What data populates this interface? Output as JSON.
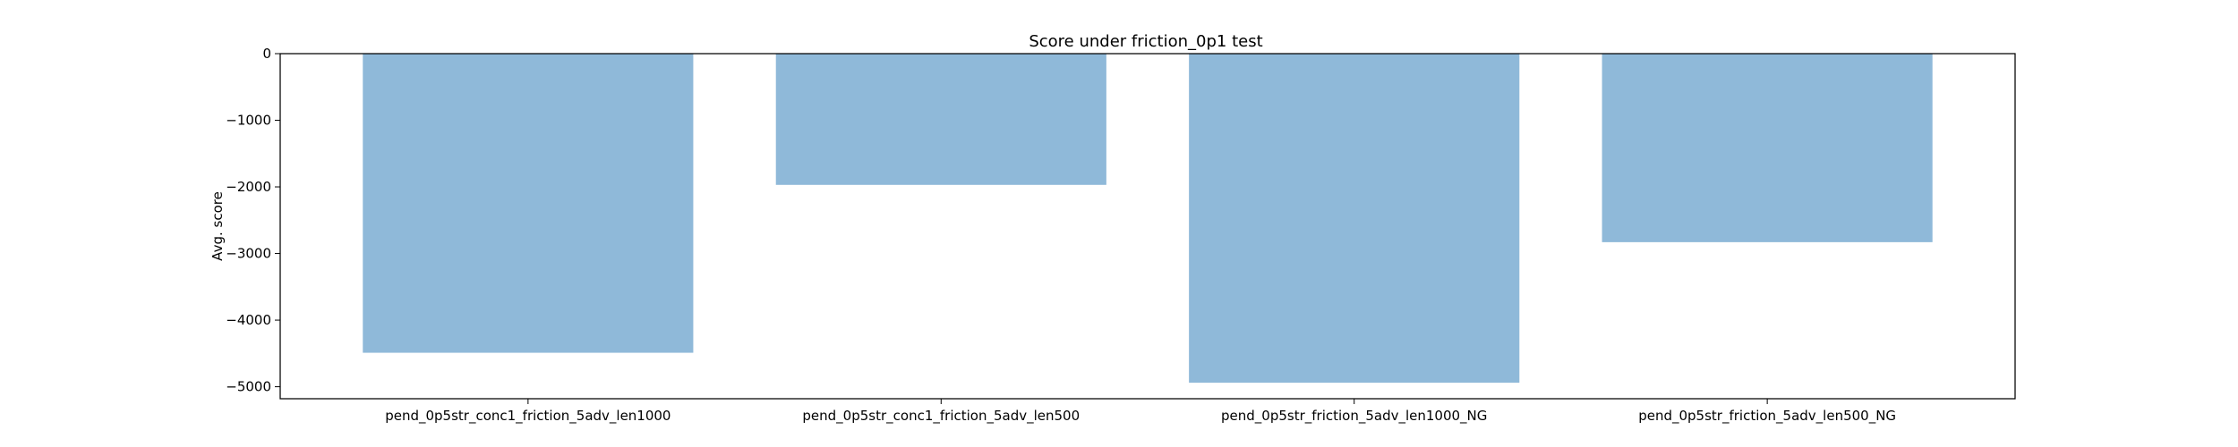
{
  "chart_data": {
    "type": "bar",
    "title": "Score under friction_0p1 test",
    "xlabel": "",
    "ylabel": "Avg. score",
    "categories": [
      "pend_0p5str_conc1_friction_5adv_len1000",
      "pend_0p5str_conc1_friction_5adv_len500",
      "pend_0p5str_friction_5adv_len1000_NG",
      "pend_0p5str_friction_5adv_len500_NG"
    ],
    "values": [
      -4490,
      -1970,
      -4940,
      -2830
    ],
    "ylim": [
      -5180,
      0
    ],
    "yticks": [
      0,
      -1000,
      -2000,
      -3000,
      -4000,
      -5000
    ],
    "ytick_labels": [
      "0",
      "−1000",
      "−2000",
      "−3000",
      "−4000",
      "−5000"
    ],
    "grid": false,
    "legend": "none",
    "bar_color": "#8fb9d9"
  }
}
